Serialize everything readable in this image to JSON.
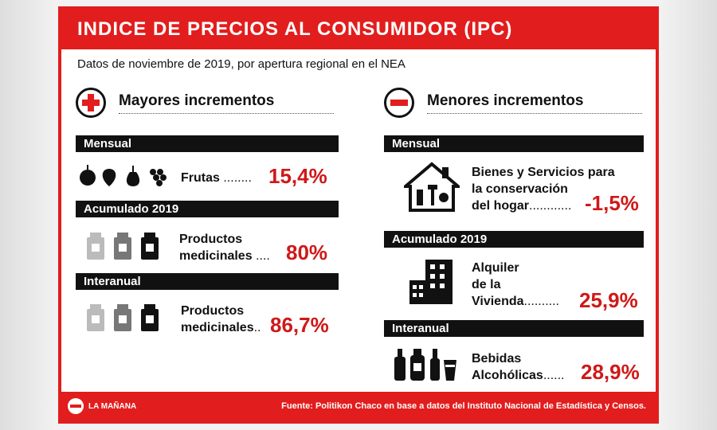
{
  "title": "INDICE DE PRECIOS AL CONSUMIDOR (IPC)",
  "subtitle": "Datos de noviembre de 2019, por apertura regional en el NEA",
  "left": {
    "heading": "Mayores incrementos",
    "icon": "plus-icon",
    "blocks": [
      {
        "bar": "Mensual",
        "item_line1": "Frutas",
        "item_line2": "",
        "dots": "........",
        "value": "15,4%",
        "icon": "fruits-icon"
      },
      {
        "bar": "Acumulado 2019",
        "item_line1": "Productos",
        "item_line2": "medicinales",
        "dots": "....",
        "value": "80%",
        "icon": "medicine-bottles-icon"
      },
      {
        "bar": "Interanual",
        "item_line1": "Productos",
        "item_line2": "medicinales",
        "dots": "..",
        "value": "86,7%",
        "icon": "medicine-bottles-icon"
      }
    ]
  },
  "right": {
    "heading": "Menores incrementos",
    "icon": "minus-icon",
    "blocks": [
      {
        "bar": "Mensual",
        "item_line1": "Bienes y Servicios para",
        "item_line2": "la conservación",
        "item_line3": "del hogar",
        "dots": "............",
        "value": "-1,5%",
        "icon": "house-tools-icon"
      },
      {
        "bar": "Acumulado 2019",
        "item_line1": "Alquiler",
        "item_line2": "de la",
        "item_line3": "Vivienda",
        "dots": "..........",
        "value": "25,9%",
        "icon": "buildings-icon"
      },
      {
        "bar": "Interanual",
        "item_line1": "Bebidas",
        "item_line2": "Alcohólicas",
        "dots": "......",
        "value": "28,9%",
        "icon": "bottles-icon"
      }
    ]
  },
  "footer": {
    "logo_text": "LA MAÑANA",
    "source": "Fuente: Politikon Chaco en base a datos del Instituto Nacional de Estadística y Censos."
  },
  "colors": {
    "accent": "#e21d1d",
    "value": "#d01818",
    "bar": "#111111"
  }
}
